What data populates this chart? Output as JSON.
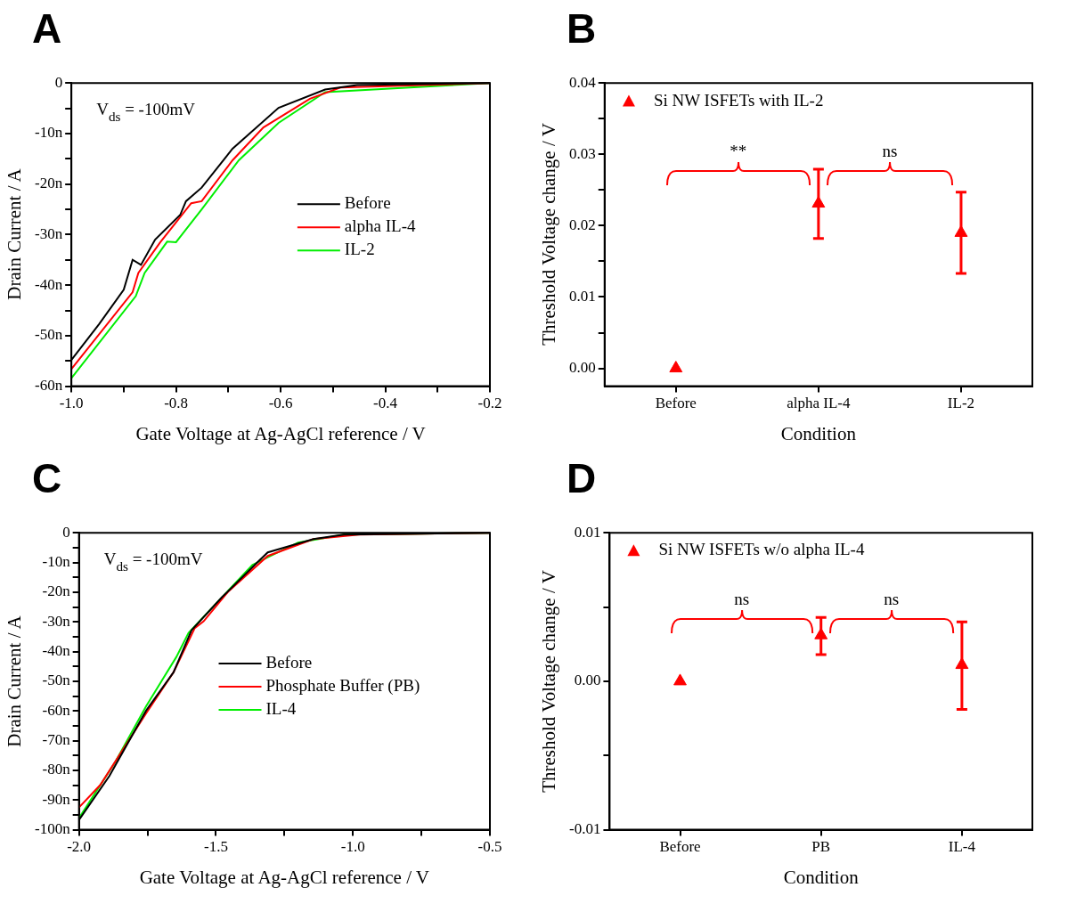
{
  "chart_data": [
    {
      "type": "line",
      "title": "A",
      "xlabel": "Gate Voltage at Ag-AgCl reference / V",
      "ylabel": "Drain Current / A",
      "annotations": [
        "V$_{ds}$ = -100mV"
      ],
      "legend": "right",
      "xlim": [
        -1.0,
        -0.2
      ],
      "xticks": [
        {
          "value": -1.0,
          "label": "-1.0"
        },
        {
          "value": -0.9,
          "label": null
        },
        {
          "value": -0.8,
          "label": "-0.8"
        },
        {
          "value": -0.7,
          "label": null
        },
        {
          "value": -0.6,
          "label": "-0.6"
        },
        {
          "value": -0.5,
          "label": null
        },
        {
          "value": -0.4,
          "label": "-0.4"
        },
        {
          "value": -0.3,
          "label": null
        },
        {
          "value": -0.2,
          "label": "-0.2"
        }
      ],
      "ylim": [
        -60,
        0
      ],
      "yticks": [
        {
          "value": -60,
          "label": "-60n"
        },
        {
          "value": -55,
          "label": null
        },
        {
          "value": -50,
          "label": "-50n"
        },
        {
          "value": -45,
          "label": null
        },
        {
          "value": -40,
          "label": "-40n"
        },
        {
          "value": -35,
          "label": null
        },
        {
          "value": -30,
          "label": "-30n"
        },
        {
          "value": -25,
          "label": null
        },
        {
          "value": -20,
          "label": "-20n"
        },
        {
          "value": -15,
          "label": null
        },
        {
          "value": -10,
          "label": "-10n"
        },
        {
          "value": -5,
          "label": null
        },
        {
          "value": 0,
          "label": "0"
        }
      ],
      "series": [
        {
          "name": "Before",
          "color": "#000000",
          "x": [
            -1.0,
            -0.947,
            -0.9,
            -0.883,
            -0.867,
            -0.84,
            -0.792,
            -0.781,
            -0.751,
            -0.692,
            -0.604,
            -0.515,
            -0.454,
            -0.2
          ],
          "values": [
            -54.8,
            -47.7,
            -40.9,
            -35.0,
            -36.0,
            -31.0,
            -26.1,
            -23.4,
            -20.7,
            -13.0,
            -4.9,
            -1.3,
            -0.4,
            0
          ]
        },
        {
          "name": "alpha IL-4",
          "color": "#ff0000",
          "x": [
            -1.0,
            -0.883,
            -0.872,
            -0.83,
            -0.771,
            -0.751,
            -0.692,
            -0.633,
            -0.544,
            -0.486,
            -0.2
          ],
          "values": [
            -56.6,
            -41.4,
            -37.6,
            -31.5,
            -23.8,
            -23.4,
            -15.3,
            -8.8,
            -3.1,
            -0.9,
            0
          ]
        },
        {
          "name": "IL-2",
          "color": "#00ee00",
          "x": [
            -1.0,
            -0.877,
            -0.86,
            -0.817,
            -0.8,
            -0.751,
            -0.68,
            -0.604,
            -0.515,
            -0.2
          ],
          "values": [
            -58.4,
            -42.2,
            -37.6,
            -31.4,
            -31.5,
            -25.0,
            -15.3,
            -7.9,
            -1.8,
            0
          ]
        }
      ]
    },
    {
      "type": "scatter",
      "title": "B",
      "xlabel": "Condition",
      "ylabel": "Threshold Voltage change / V",
      "annotations": [
        "**",
        "ns"
      ],
      "legend": "top left",
      "marker": "triangle",
      "categories": [
        "Before",
        "alpha IL-4",
        "IL-2"
      ],
      "ylim": [
        -0.0025,
        0.04
      ],
      "yticks": [
        {
          "value": 0,
          "label": "0.00"
        },
        {
          "value": 0.005,
          "label": null
        },
        {
          "value": 0.01,
          "label": "0.01"
        },
        {
          "value": 0.015,
          "label": null
        },
        {
          "value": 0.02,
          "label": "0.02"
        },
        {
          "value": 0.025,
          "label": null
        },
        {
          "value": 0.03,
          "label": "0.03"
        },
        {
          "value": 0.035,
          "label": null
        },
        {
          "value": 0.04,
          "label": "0.04"
        }
      ],
      "series": [
        {
          "name": "Si NW ISFETs with IL-2",
          "color": "#ff0000",
          "values": [
            0,
            0.0231,
            0.019
          ],
          "errors": [
            null,
            [
              0.0182,
              0.0279
            ],
            [
              0.0133,
              0.0247
            ]
          ]
        }
      ]
    },
    {
      "type": "line",
      "title": "C",
      "xlabel": "Gate Voltage at Ag-AgCl reference / V",
      "ylabel": "Drain Current / A",
      "annotations": [
        "V$_{ds}$ = -100mV"
      ],
      "legend": "center",
      "xlim": [
        -2.0,
        -0.5
      ],
      "xticks": [
        {
          "value": -2.0,
          "label": "-2.0"
        },
        {
          "value": -1.75,
          "label": null
        },
        {
          "value": -1.5,
          "label": "-1.5"
        },
        {
          "value": -1.25,
          "label": null
        },
        {
          "value": -1.0,
          "label": "-1.0"
        },
        {
          "value": -0.75,
          "label": null
        },
        {
          "value": -0.5,
          "label": "-0.5"
        }
      ],
      "ylim": [
        -100,
        0
      ],
      "yticks": [
        {
          "value": -100,
          "label": "-100n"
        },
        {
          "value": -95,
          "label": null
        },
        {
          "value": -90,
          "label": "-90n"
        },
        {
          "value": -85,
          "label": null
        },
        {
          "value": -80,
          "label": "-80n"
        },
        {
          "value": -75,
          "label": null
        },
        {
          "value": -70,
          "label": "-70n"
        },
        {
          "value": -65,
          "label": null
        },
        {
          "value": -60,
          "label": "-60n"
        },
        {
          "value": -55,
          "label": null
        },
        {
          "value": -50,
          "label": "-50n"
        },
        {
          "value": -45,
          "label": null
        },
        {
          "value": -40,
          "label": "-40n"
        },
        {
          "value": -35,
          "label": null
        },
        {
          "value": -30,
          "label": "-30n"
        },
        {
          "value": -25,
          "label": null
        },
        {
          "value": -20,
          "label": "-20n"
        },
        {
          "value": -15,
          "label": null
        },
        {
          "value": -10,
          "label": "-10n"
        },
        {
          "value": -5,
          "label": null
        },
        {
          "value": 0,
          "label": "0"
        }
      ],
      "series": [
        {
          "name": "Before",
          "color": "#000000",
          "x": [
            -2.0,
            -1.889,
            -1.755,
            -1.655,
            -1.589,
            -1.478,
            -1.345,
            -1.311,
            -1.144,
            -1.033,
            -0.5
          ],
          "values": [
            -96.7,
            -81.9,
            -59.9,
            -47.0,
            -32.8,
            -21.7,
            -9.6,
            -6.6,
            -2.1,
            -0.6,
            0
          ]
        },
        {
          "name": "Phosphate Buffer (PB)",
          "color": "#ff0000",
          "x": [
            -2.0,
            -1.922,
            -1.755,
            -1.655,
            -1.578,
            -1.545,
            -1.456,
            -1.311,
            -1.144,
            -0.978,
            -0.5
          ],
          "values": [
            -92.5,
            -84.9,
            -60.8,
            -47.0,
            -32.2,
            -29.8,
            -19.9,
            -7.8,
            -2.1,
            -0.6,
            0
          ]
        },
        {
          "name": "IL-4",
          "color": "#00ee00",
          "x": [
            -2.0,
            -1.867,
            -1.755,
            -1.645,
            -1.6,
            -1.367,
            -1.2,
            -1.033,
            -0.5
          ],
          "values": [
            -96.1,
            -77.1,
            -58.4,
            -41.9,
            -33.7,
            -10.8,
            -3.3,
            -0.6,
            0
          ]
        }
      ]
    },
    {
      "type": "scatter",
      "title": "D",
      "xlabel": "Condition",
      "ylabel": "Threshold Voltage change / V",
      "annotations": [
        "ns",
        "ns"
      ],
      "legend": "top left",
      "marker": "triangle",
      "categories": [
        "Before",
        "PB",
        "IL-4"
      ],
      "ylim": [
        -0.01,
        0.01
      ],
      "yticks": [
        {
          "value": -0.01,
          "label": "-0.01"
        },
        {
          "value": -0.005,
          "label": null
        },
        {
          "value": 0,
          "label": "0.00"
        },
        {
          "value": 0.005,
          "label": null
        },
        {
          "value": 0.01,
          "label": "0.01"
        }
      ],
      "series": [
        {
          "name": "Si NW ISFETs w/o alpha IL-4",
          "color": "#ff0000",
          "values": [
            0,
            0.0031,
            0.0011
          ],
          "errors": [
            null,
            [
              0.0018,
              0.0043
            ],
            [
              -0.0019,
              0.004
            ]
          ]
        }
      ]
    }
  ]
}
